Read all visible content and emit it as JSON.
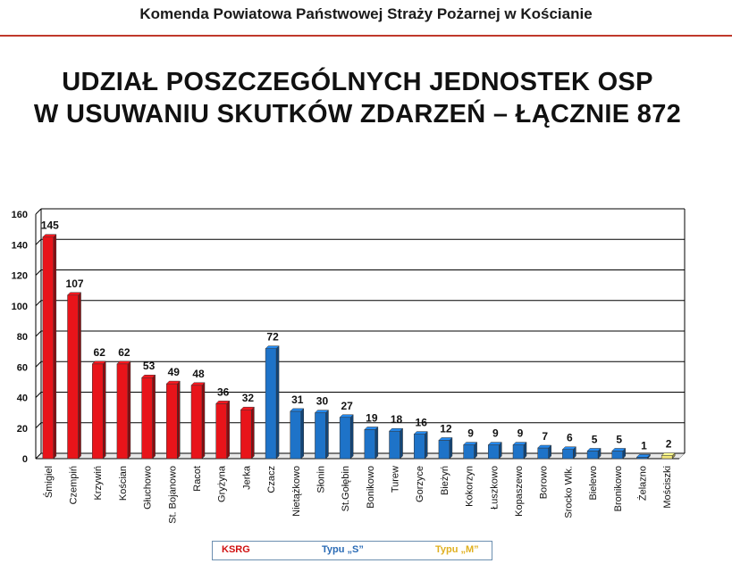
{
  "header": {
    "title": "Komenda Powiatowa Państwowej Straży Pożarnej w Kościanie",
    "accent_color": "#c0392b"
  },
  "chart_data": {
    "type": "bar",
    "title_line1": "UDZIAŁ POSZCZEGÓLNYCH JEDNOSTEK OSP",
    "title_line2": "W USUWANIU SKUTKÓW ZDARZEŃ – ŁĄCZNIE 872",
    "categories": [
      "Śmigiel",
      "Czempiń",
      "Krzywiń",
      "Kościan",
      "Głuchowo",
      "St. Bojanowo",
      "Racot",
      "Gryżyna",
      "Jerka",
      "Czacz",
      "Nietążkowo",
      "Słonin",
      "St.Gołębin",
      "Bonikowo",
      "Turew",
      "Gorzyce",
      "Bieżyń",
      "Kokorzyn",
      "Łuszkowo",
      "Kopaszewo",
      "Borowo",
      "Srocko Wlk.",
      "Bielewo",
      "Bronikowo",
      "Żelazno",
      "Mościszki"
    ],
    "values": [
      145,
      107,
      62,
      62,
      53,
      49,
      48,
      36,
      32,
      72,
      31,
      30,
      27,
      19,
      18,
      16,
      12,
      9,
      9,
      9,
      7,
      6,
      5,
      5,
      1,
      2
    ],
    "groups": [
      "KSRG",
      "KSRG",
      "KSRG",
      "KSRG",
      "KSRG",
      "KSRG",
      "KSRG",
      "KSRG",
      "KSRG",
      "S",
      "S",
      "S",
      "S",
      "S",
      "S",
      "S",
      "S",
      "S",
      "S",
      "S",
      "S",
      "S",
      "S",
      "S",
      "S",
      "M"
    ],
    "ylim": [
      0,
      160
    ],
    "yticks": [
      0,
      20,
      40,
      60,
      80,
      100,
      120,
      140,
      160
    ],
    "grid": true,
    "colors": {
      "KSRG": "#e8141a",
      "S": "#1e73c8",
      "M": "#f2e67a"
    },
    "legend": {
      "position": "bottom-center",
      "entries": [
        {
          "label": "KSRG",
          "color": "#d01010"
        },
        {
          "label": "Typu „S”",
          "color": "#2a6bb5"
        },
        {
          "label": "Typu „M”",
          "color": "#e0b020"
        }
      ]
    }
  }
}
